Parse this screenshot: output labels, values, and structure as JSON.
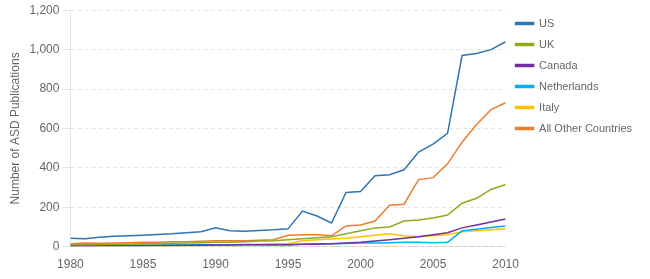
{
  "chart_data": {
    "type": "line",
    "y_label": "Number of ASD Publications",
    "x": [
      1980,
      1981,
      1982,
      1983,
      1984,
      1985,
      1986,
      1987,
      1988,
      1989,
      1990,
      1991,
      1992,
      1993,
      1994,
      1995,
      1996,
      1997,
      1998,
      1999,
      2000,
      2001,
      2002,
      2003,
      2004,
      2005,
      2006,
      2007,
      2008,
      2009,
      2010
    ],
    "series": [
      {
        "name": "US",
        "color": "#2e75b6",
        "values": [
          42,
          40,
          48,
          52,
          55,
          58,
          62,
          65,
          70,
          75,
          95,
          80,
          78,
          82,
          85,
          90,
          180,
          155,
          120,
          275,
          280,
          360,
          365,
          390,
          480,
          520,
          575,
          970,
          980,
          1000,
          1040
        ]
      },
      {
        "name": "UK",
        "color": "#8faa1b",
        "values": [
          10,
          10,
          11,
          12,
          13,
          14,
          15,
          17,
          18,
          20,
          22,
          22,
          25,
          28,
          30,
          35,
          40,
          45,
          50,
          65,
          80,
          95,
          100,
          130,
          135,
          145,
          160,
          220,
          245,
          290,
          315
        ]
      },
      {
        "name": "Canada",
        "color": "#7030a0",
        "values": [
          4,
          4,
          5,
          5,
          5,
          5,
          6,
          6,
          7,
          7,
          8,
          8,
          9,
          9,
          9,
          10,
          12,
          12,
          15,
          18,
          22,
          28,
          35,
          42,
          50,
          60,
          70,
          95,
          110,
          125,
          140
        ]
      },
      {
        "name": "Netherlands",
        "color": "#00b0f0",
        "values": [
          5,
          5,
          5,
          6,
          6,
          6,
          7,
          8,
          8,
          9,
          10,
          10,
          10,
          10,
          10,
          10,
          12,
          14,
          15,
          16,
          18,
          18,
          20,
          22,
          22,
          20,
          22,
          80,
          88,
          97,
          105
        ]
      },
      {
        "name": "Italy",
        "color": "#ffc000",
        "values": [
          3,
          4,
          4,
          4,
          5,
          5,
          5,
          6,
          7,
          8,
          10,
          10,
          12,
          12,
          14,
          15,
          30,
          35,
          38,
          42,
          50,
          58,
          65,
          55,
          50,
          55,
          60,
          75,
          80,
          85,
          90
        ]
      },
      {
        "name": "All Other Countries",
        "color": "#ed7d31",
        "values": [
          15,
          18,
          17,
          18,
          20,
          22,
          22,
          25,
          25,
          27,
          30,
          30,
          30,
          32,
          35,
          58,
          60,
          60,
          55,
          105,
          110,
          130,
          210,
          215,
          340,
          350,
          420,
          530,
          620,
          695,
          730
        ]
      }
    ],
    "xlim": [
      1980,
      2010
    ],
    "xticks": [
      1980,
      1985,
      1990,
      1995,
      2000,
      2005,
      2010
    ],
    "ylim": [
      0,
      1200
    ],
    "yticks": [
      0,
      200,
      400,
      600,
      800,
      {
        "value": 1000,
        "label": "1,000"
      },
      {
        "value": 1200,
        "label": "1,200"
      }
    ],
    "grid": "y",
    "legend": "right"
  }
}
